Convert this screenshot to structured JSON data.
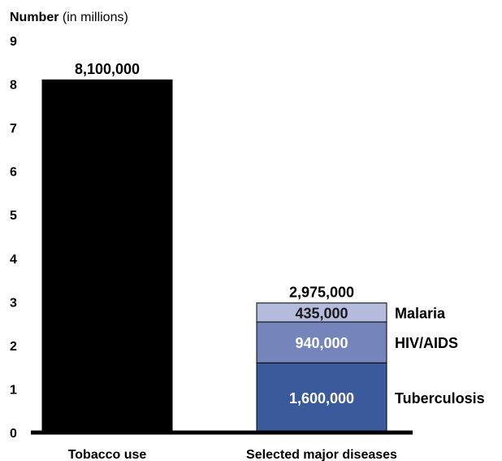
{
  "chart_data": {
    "type": "bar",
    "stacked": true,
    "ylabel": {
      "bold": "Number",
      "rest": " (in millions)"
    },
    "ylim": [
      0,
      9
    ],
    "yticks": [
      0,
      1,
      2,
      3,
      4,
      5,
      6,
      7,
      8,
      9
    ],
    "grid": false,
    "legend": "inline-right",
    "categories": [
      "Tobacco use",
      "Selected major diseases"
    ],
    "bars": [
      {
        "category": "Tobacco use",
        "total_label": "8,100,000",
        "segments": [
          {
            "name": "",
            "value": 8.1,
            "label": "",
            "color": "#000000"
          }
        ]
      },
      {
        "category": "Selected major diseases",
        "total_label": "2,975,000",
        "segments": [
          {
            "name": "Tuberculosis",
            "value": 1.6,
            "label": "1,600,000",
            "color": "#3a5a9b",
            "label_color": "#ffffff"
          },
          {
            "name": "HIV/AIDS",
            "value": 0.94,
            "label": "940,000",
            "color": "#7585bb",
            "label_color": "#ffffff"
          },
          {
            "name": "Malaria",
            "value": 0.435,
            "label": "435,000",
            "color": "#b5bbdc",
            "label_color": "#1a1a1a"
          }
        ]
      }
    ]
  }
}
